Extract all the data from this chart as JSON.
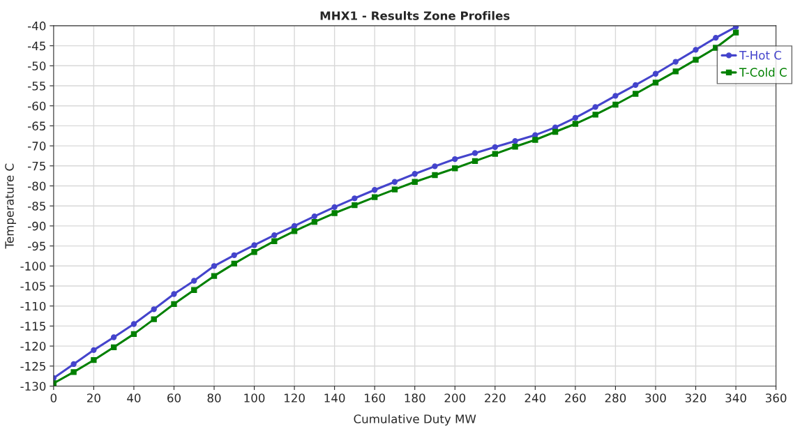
{
  "chart_data": {
    "type": "line",
    "title": "MHX1 - Results Zone Profiles",
    "xlabel": "Cumulative Duty MW",
    "ylabel": "Temperature C",
    "xlim": [
      0,
      360
    ],
    "xticks": [
      0,
      20,
      40,
      60,
      80,
      100,
      120,
      140,
      160,
      180,
      200,
      220,
      240,
      260,
      280,
      300,
      320,
      340,
      360
    ],
    "ylim": [
      -130,
      -40
    ],
    "yticks": [
      -130,
      -125,
      -120,
      -115,
      -110,
      -105,
      -100,
      -95,
      -90,
      -85,
      -80,
      -75,
      -70,
      -65,
      -60,
      -55,
      -50,
      -45,
      -40
    ],
    "grid": true,
    "legend": "top right",
    "line_style": "solid",
    "x": [
      0,
      10,
      20,
      30,
      40,
      50,
      60,
      70,
      80,
      90,
      100,
      110,
      120,
      130,
      140,
      150,
      160,
      170,
      180,
      190,
      200,
      210,
      220,
      230,
      240,
      250,
      260,
      270,
      280,
      290,
      300,
      310,
      320,
      330,
      340
    ],
    "series": [
      {
        "name": "T-Hot C",
        "color": "#4444cc",
        "marker": "circle",
        "values": [
          -128,
          -124.5,
          -121,
          -117.8,
          -114.5,
          -110.8,
          -107,
          -103.7,
          -100,
          -97.3,
          -94.8,
          -92.3,
          -90,
          -87.6,
          -85.3,
          -83.1,
          -81,
          -79,
          -77,
          -75.1,
          -73.3,
          -71.8,
          -70.3,
          -68.8,
          -67.3,
          -65.4,
          -63,
          -60.3,
          -57.5,
          -54.8,
          -52,
          -49,
          -46,
          -43,
          -40.3
        ]
      },
      {
        "name": "T-Cold C",
        "color": "#008000",
        "marker": "square",
        "values": [
          -129.3,
          -126.5,
          -123.5,
          -120.3,
          -117,
          -113.3,
          -109.5,
          -106,
          -102.5,
          -99.4,
          -96.5,
          -93.8,
          -91.3,
          -89,
          -86.8,
          -84.8,
          -82.8,
          -80.9,
          -79,
          -77.3,
          -75.6,
          -73.8,
          -72,
          -70.2,
          -68.5,
          -66.5,
          -64.5,
          -62.2,
          -59.7,
          -57,
          -54.2,
          -51.4,
          -48.5,
          -45.5,
          -41.7
        ]
      }
    ]
  }
}
